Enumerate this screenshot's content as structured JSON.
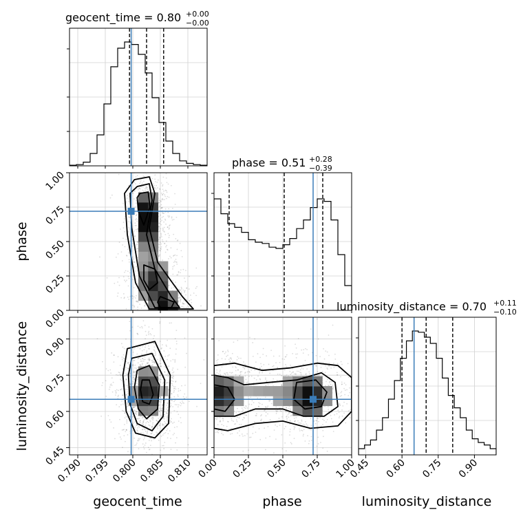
{
  "chart_data": {
    "type": "corner",
    "parameters": [
      "geocent_time",
      "phase",
      "luminosity_distance"
    ],
    "titles": [
      {
        "param": "geocent_time",
        "text": "geocent_time = 0.80",
        "plus": "+0.00",
        "minus": "−0.00"
      },
      {
        "param": "phase",
        "text": "phase = 0.51",
        "plus": "+0.28",
        "minus": "−0.39"
      },
      {
        "param": "luminosity_distance",
        "text": "luminosity_distance = 0.70",
        "plus": "+0.11",
        "minus": "−0.10"
      }
    ],
    "ranges": {
      "geocent_time": [
        0.7885,
        0.8135
      ],
      "phase": [
        0.0,
        1.0
      ],
      "luminosity_distance": [
        0.42,
        0.99
      ]
    },
    "ticks": {
      "geocent_time": {
        "values": [
          0.79,
          0.795,
          0.8,
          0.805,
          0.81
        ],
        "labels": [
          "0.790",
          "0.795",
          "0.800",
          "0.805",
          "0.810"
        ]
      },
      "phase": {
        "values": [
          0.0,
          0.25,
          0.5,
          0.75,
          1.0
        ],
        "labels": [
          "0.00",
          "0.25",
          "0.50",
          "0.75",
          "1.00"
        ]
      },
      "luminosity_distance": {
        "values": [
          0.45,
          0.6,
          0.75,
          0.9
        ],
        "labels": [
          "0.45",
          "0.60",
          "0.75",
          "0.90"
        ]
      }
    },
    "quantiles": {
      "geocent_time": [
        0.7994,
        0.8025,
        0.8056
      ],
      "phase": [
        0.11,
        0.51,
        0.79
      ],
      "luminosity_distance": [
        0.6,
        0.7,
        0.81
      ]
    },
    "truths": {
      "geocent_time": 0.7997,
      "phase": 0.72,
      "luminosity_distance": 0.65
    },
    "histograms": {
      "geocent_time": [
        0.005,
        0.01,
        0.03,
        0.1,
        0.25,
        0.5,
        0.8,
        0.95,
        1.0,
        0.98,
        0.9,
        0.75,
        0.55,
        0.35,
        0.2,
        0.1,
        0.04,
        0.02,
        0.01,
        0.005
      ],
      "phase": [
        0.9,
        0.78,
        0.7,
        0.67,
        0.63,
        0.57,
        0.55,
        0.54,
        0.51,
        0.5,
        0.53,
        0.58,
        0.66,
        0.73,
        0.83,
        0.9,
        0.88,
        0.73,
        0.45,
        0.2
      ],
      "luminosity_distance": [
        0.05,
        0.08,
        0.12,
        0.2,
        0.3,
        0.45,
        0.6,
        0.78,
        0.92,
        1.0,
        0.99,
        0.95,
        0.9,
        0.78,
        0.62,
        0.48,
        0.38,
        0.3,
        0.2,
        0.13,
        0.1,
        0.08,
        0.05
      ]
    },
    "grid": true,
    "color": "#000000",
    "truth_color": "#3a7cb8"
  }
}
